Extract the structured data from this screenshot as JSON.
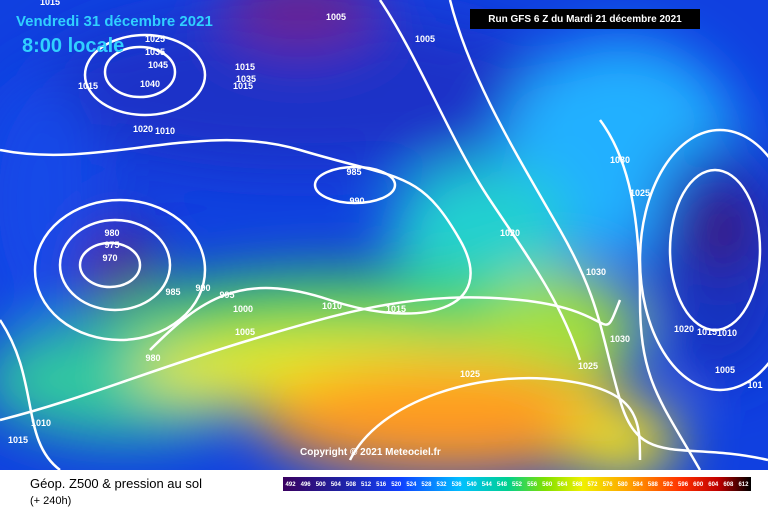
{
  "header": {
    "date": "Vendredi 31 décembre 2021",
    "time": "8:00 locale",
    "run": "Run GFS 6 Z du Mardi 21 décembre 2021"
  },
  "copyright": "Copyright © 2021 Meteociel.fr",
  "footer": {
    "title": "Géop. Z500 & pression au sol",
    "lead": "(+ 240h)"
  },
  "legend": {
    "values": [
      492,
      496,
      500,
      504,
      508,
      512,
      516,
      520,
      524,
      528,
      532,
      536,
      540,
      544,
      548,
      552,
      556,
      560,
      564,
      568,
      572,
      576,
      580,
      584,
      588,
      592,
      596,
      600,
      604,
      608,
      612
    ]
  },
  "isobars": {
    "labels": [
      "1015",
      "1005",
      "1005",
      "1025",
      "1035",
      "1045",
      "1040",
      "1015",
      "1015",
      "1035",
      "1015",
      "1020",
      "1010",
      "985",
      "990",
      "980",
      "975",
      "970",
      "985",
      "990",
      "995",
      "1000",
      "1005",
      "980",
      "1010",
      "1015",
      "1020",
      "1030",
      "1025",
      "1030",
      "1030",
      "1020",
      "1015",
      "1010",
      "1025",
      "1005",
      "1025",
      "1010",
      "1015",
      "101"
    ]
  }
}
